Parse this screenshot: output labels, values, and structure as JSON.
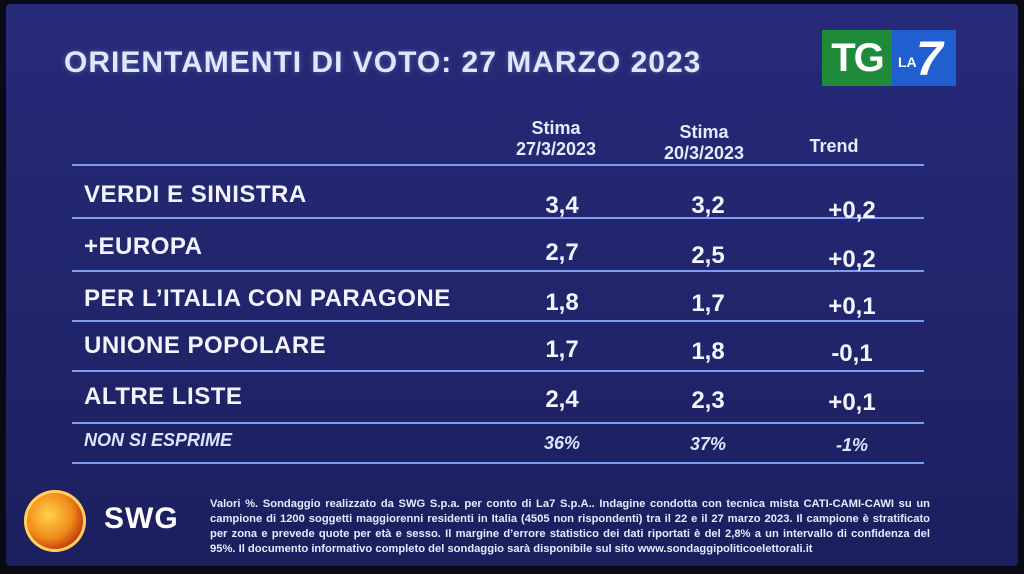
{
  "header": {
    "title": "ORIENTAMENTI DI VOTO: 27 MARZO 2023"
  },
  "brand": {
    "tg": "TG",
    "la": "LA",
    "seven": "7",
    "swg": "SWG"
  },
  "columns": {
    "col1": {
      "line1": "Stima",
      "line2": "27/3/2023"
    },
    "col2": {
      "line1": "Stima",
      "line2": "20/3/2023"
    },
    "col3": {
      "line1": "Trend"
    }
  },
  "rows": [
    {
      "label": "VERDI E SINISTRA",
      "v1": "3,4",
      "v2": "3,2",
      "trend": "+0,2"
    },
    {
      "label": "+EUROPA",
      "v1": "2,7",
      "v2": "2,5",
      "trend": "+0,2"
    },
    {
      "label": "PER L’ITALIA CON PARAGONE",
      "v1": "1,8",
      "v2": "1,7",
      "trend": "+0,1"
    },
    {
      "label": "UNIONE POPOLARE",
      "v1": "1,7",
      "v2": "1,8",
      "trend": "-0,1"
    },
    {
      "label": "ALTRE LISTE",
      "v1": "2,4",
      "v2": "2,3",
      "trend": "+0,1"
    }
  ],
  "footer_row": {
    "label": "NON SI ESPRIME",
    "v1": "36%",
    "v2": "37%",
    "trend": "-1%"
  },
  "note": "Valori %. Sondaggio realizzato da SWG S.p.a. per conto di La7 S.p.A.. Indagine condotta con tecnica mista CATI-CAMI-CAWI su un campione di 1200 soggetti maggiorenni residenti in Italia (4505 non rispondenti) tra il 22 e il 27 marzo 2023. Il campione è stratificato per zona e prevede quote per età e sesso. Il margine d’errore statistico dei dati riportati è del 2,8% a un intervallo di confidenza del 95%. Il documento informativo completo del sondaggio sarà disponibile sul sito www.sondaggipoliticoelettorali.it",
  "colors": {
    "background": "#262a78",
    "rule": "#7e9cf0",
    "tg_green": "#1f8b3a",
    "la7_blue": "#1f5fd0"
  }
}
